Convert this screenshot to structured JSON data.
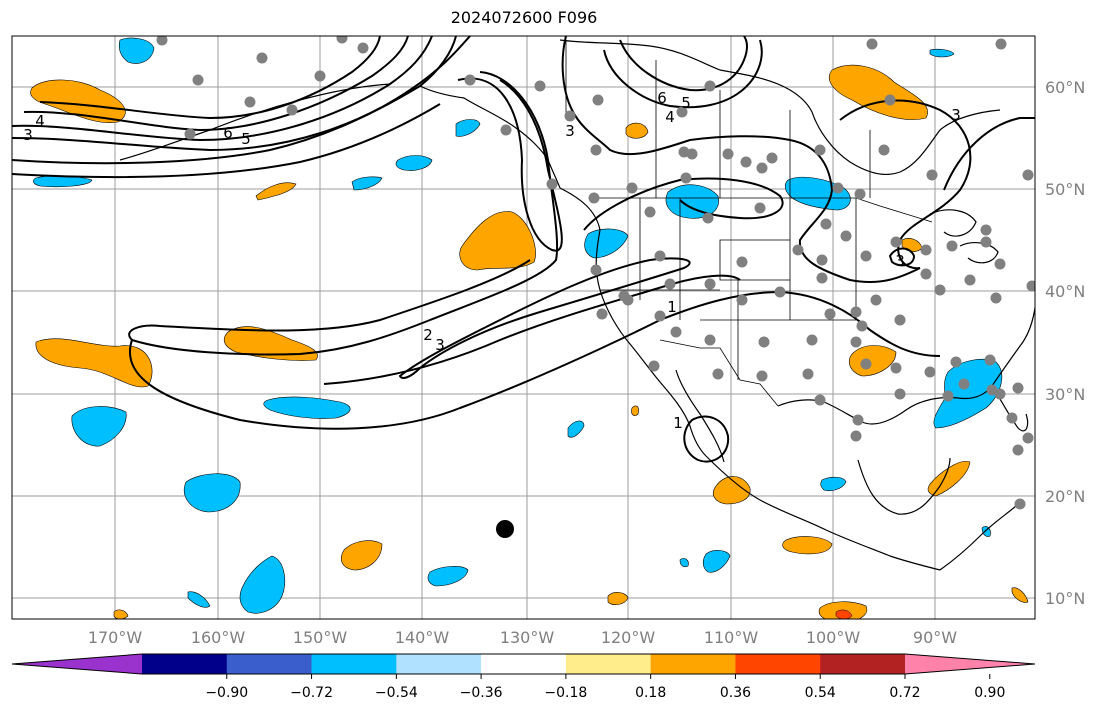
{
  "title": "2024072600 F096",
  "map": {
    "lon_range": [
      -180,
      -80
    ],
    "lat_range": [
      8,
      65
    ],
    "lon_ticks": [
      "170°W",
      "160°W",
      "150°W",
      "140°W",
      "130°W",
      "120°W",
      "110°W",
      "100°W",
      "90°W"
    ],
    "lat_ticks": [
      "10°N",
      "20°N",
      "30°N",
      "40°N",
      "50°N",
      "60°N"
    ],
    "grid": true,
    "contour_labels": [
      "4",
      "3",
      "6",
      "5",
      "6",
      "5",
      "4",
      "3",
      "2",
      "3",
      "1",
      "3",
      "3",
      "1"
    ],
    "marker": "storm-center-dot"
  },
  "colorbar": {
    "ticks": [
      "−0.90",
      "−0.72",
      "−0.54",
      "−0.36",
      "−0.18",
      "0.18",
      "0.36",
      "0.54",
      "0.72",
      "0.90"
    ],
    "colors": [
      "#9a32cd",
      "#00008b",
      "#3a5fcd",
      "#00bfff",
      "#b0e2ff",
      "#ffffff",
      "#ffec8b",
      "#ffa500",
      "#ff4500",
      "#b22222",
      "#ff82ab"
    ],
    "extend": "both"
  }
}
